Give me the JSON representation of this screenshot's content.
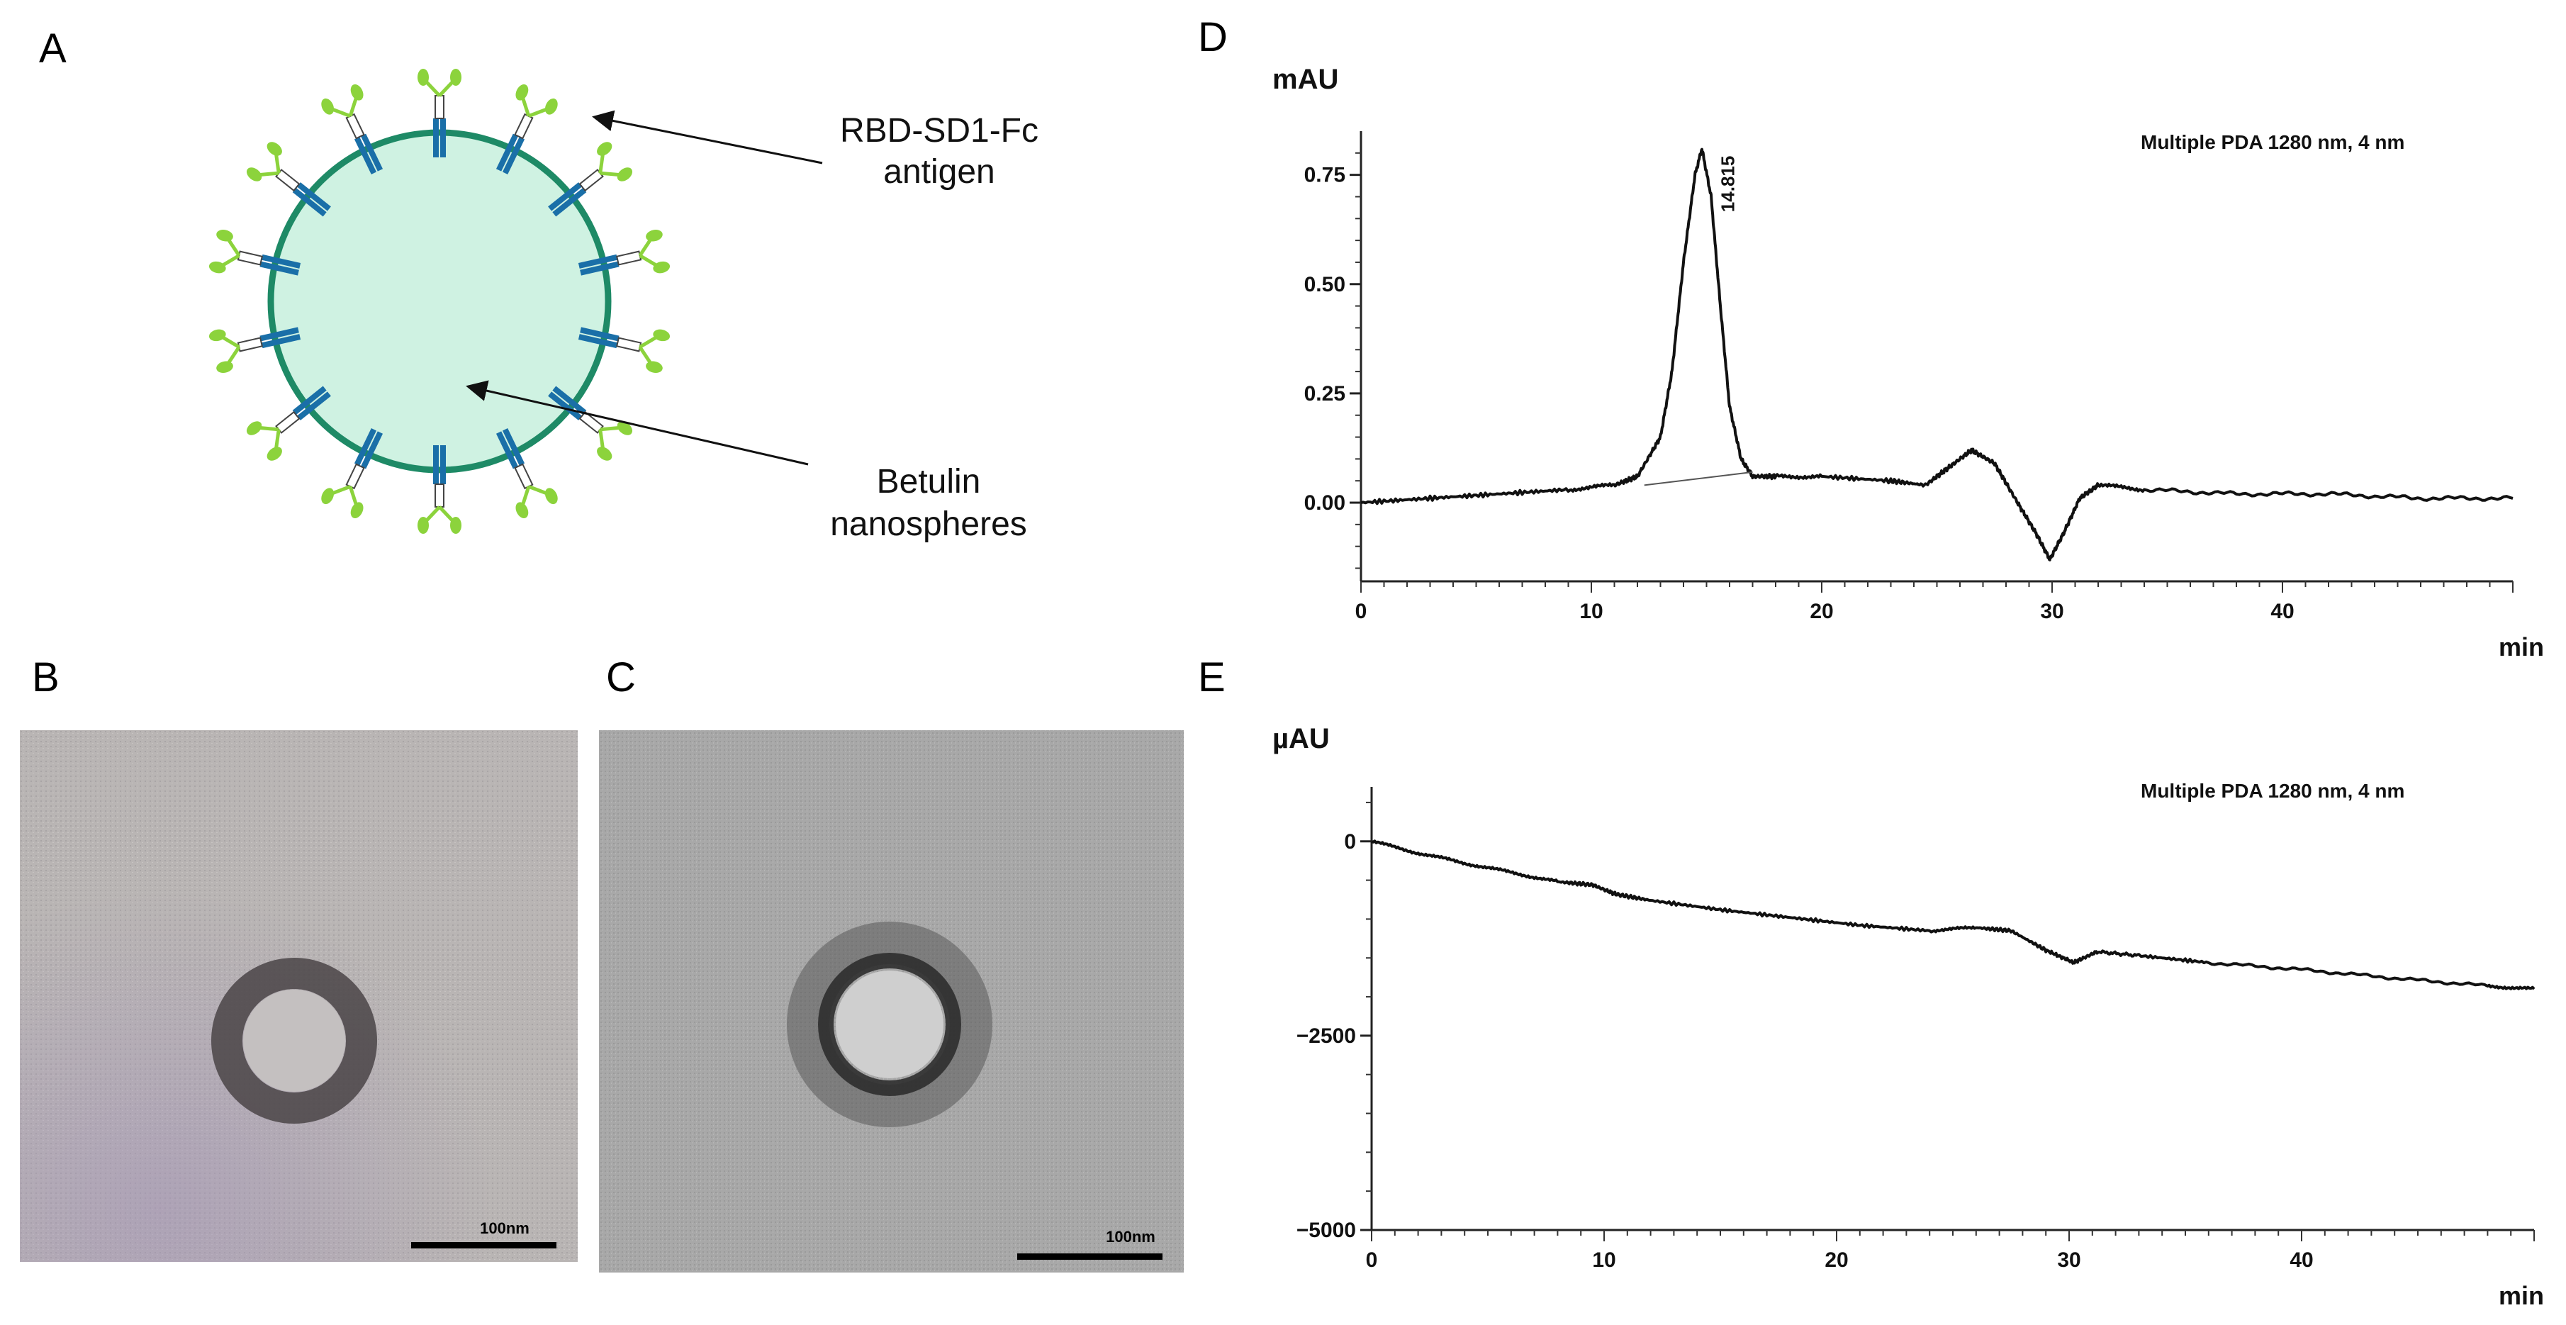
{
  "panels": {
    "A": {
      "label": "A",
      "antigen_label_line1": "RBD-SD1-Fc",
      "antigen_label_line2": "antigen",
      "sphere_label_line1": "Betulin",
      "sphere_label_line2": "nanospheres",
      "colors": {
        "sphere_fill": "#cff2e2",
        "sphere_stroke": "#1e8a66",
        "antibody_blue": "#1a6fa8",
        "antibody_green": "#8cd33c"
      }
    },
    "B": {
      "label": "B",
      "scale_bar": "100nm"
    },
    "C": {
      "label": "C",
      "scale_bar": "100nm"
    },
    "D": {
      "label": "D"
    },
    "E": {
      "label": "E"
    }
  },
  "chart_data": [
    {
      "panel": "D",
      "type": "line",
      "ylabel": "mAU",
      "xlabel": "min",
      "annotation": "Multiple PDA 1280 nm, 4 nm",
      "peak_label": "14.815",
      "x_ticks": [
        "0",
        "10",
        "20",
        "30",
        "40"
      ],
      "y_ticks": [
        "0.00",
        "0.25",
        "0.50",
        "0.75"
      ],
      "xlim": [
        0,
        50
      ],
      "ylim": [
        -0.18,
        0.85
      ],
      "series": [
        {
          "x": [
            0,
            3,
            6,
            9,
            11,
            12,
            13,
            13.5,
            14,
            14.5,
            14.8,
            15.2,
            15.6,
            16,
            16.5,
            17,
            18,
            20,
            23,
            24.5,
            25.5,
            26.5,
            27.5,
            28.5,
            29.3,
            29.9,
            30.5,
            31.2,
            32,
            34,
            38,
            42,
            46,
            50
          ],
          "y": [
            0.0,
            0.01,
            0.02,
            0.03,
            0.04,
            0.06,
            0.15,
            0.3,
            0.55,
            0.75,
            0.81,
            0.7,
            0.45,
            0.22,
            0.1,
            0.06,
            0.06,
            0.06,
            0.05,
            0.04,
            0.08,
            0.12,
            0.09,
            0.0,
            -0.07,
            -0.13,
            -0.07,
            0.01,
            0.04,
            0.03,
            0.02,
            0.02,
            0.01,
            0.01
          ]
        }
      ],
      "baseline": {
        "x": [
          12.3,
          17
        ],
        "y": [
          0.04,
          0.07
        ]
      }
    },
    {
      "panel": "E",
      "type": "line",
      "ylabel": "µAU",
      "xlabel": "min",
      "annotation": "Multiple PDA 1280 nm, 4 nm",
      "x_ticks": [
        "0",
        "10",
        "20",
        "30",
        "40"
      ],
      "y_ticks": [
        "0",
        "−2500",
        "−5000"
      ],
      "xlim": [
        0,
        50
      ],
      "ylim": [
        -5000,
        700
      ],
      "series": [
        {
          "x": [
            0,
            2,
            4,
            6,
            8,
            9.5,
            10.5,
            12,
            15,
            18,
            21,
            24,
            26,
            27.5,
            29,
            30.2,
            31.2,
            33,
            36,
            40,
            44,
            48,
            50
          ],
          "y": [
            0,
            -150,
            -280,
            -400,
            -520,
            -560,
            -680,
            -760,
            -880,
            -980,
            -1080,
            -1150,
            -1110,
            -1150,
            -1400,
            -1560,
            -1420,
            -1470,
            -1560,
            -1650,
            -1760,
            -1860,
            -1900
          ]
        }
      ]
    }
  ]
}
